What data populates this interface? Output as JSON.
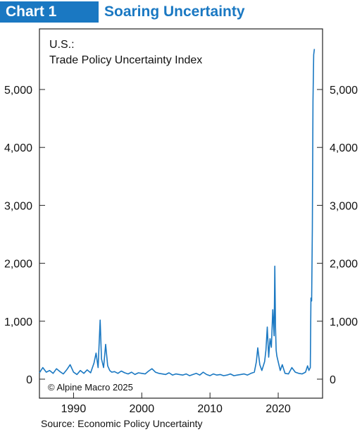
{
  "header": {
    "chart_number": "Chart 1",
    "title": "Soaring Uncertainty"
  },
  "footer": {
    "source": "Source: Economic Policy Uncertainty"
  },
  "colors": {
    "accent": "#1a78c2",
    "line": "#1a78c2"
  },
  "chart_data": {
    "type": "line",
    "title": "U.S.:",
    "subtitle": "Trade Policy Uncertainty Index",
    "annotation": "© Alpine Macro 2025",
    "xlabel": "",
    "ylabel": "",
    "xlim": [
      1985,
      2026.5
    ],
    "ylim": [
      0,
      6000
    ],
    "y_ticks": [
      0,
      1000,
      2000,
      3000,
      4000,
      5000
    ],
    "y_tick_labels": [
      "0",
      "1,000",
      "2,000",
      "3,000",
      "4,000",
      "5,000"
    ],
    "x_ticks": [
      1990,
      2000,
      2010,
      2020
    ],
    "x_tick_labels": [
      "1990",
      "2000",
      "2010",
      "2020"
    ],
    "grid": false,
    "series": [
      {
        "name": "",
        "x": [
          1985.0,
          1985.5,
          1986.0,
          1986.5,
          1987.0,
          1987.5,
          1988.0,
          1988.5,
          1989.0,
          1989.5,
          1990.0,
          1990.5,
          1991.0,
          1991.5,
          1992.0,
          1992.5,
          1993.0,
          1993.3,
          1993.6,
          1993.9,
          1994.1,
          1994.4,
          1994.7,
          1995.0,
          1995.3,
          1995.6,
          1996.0,
          1996.5,
          1997.0,
          1997.5,
          1998.0,
          1998.5,
          1999.0,
          1999.5,
          2000.0,
          2000.5,
          2001.0,
          2001.5,
          2002.0,
          2002.5,
          2003.0,
          2003.5,
          2004.0,
          2004.5,
          2005.0,
          2005.5,
          2006.0,
          2006.5,
          2007.0,
          2007.5,
          2008.0,
          2008.5,
          2009.0,
          2009.5,
          2010.0,
          2010.5,
          2011.0,
          2011.5,
          2012.0,
          2012.5,
          2013.0,
          2013.5,
          2014.0,
          2014.5,
          2015.0,
          2015.5,
          2016.0,
          2016.5,
          2016.8,
          2017.0,
          2017.3,
          2017.6,
          2018.0,
          2018.2,
          2018.4,
          2018.6,
          2018.8,
          2019.0,
          2019.2,
          2019.4,
          2019.5,
          2019.6,
          2019.7,
          2019.8,
          2020.0,
          2020.3,
          2020.6,
          2021.0,
          2021.5,
          2022.0,
          2022.5,
          2023.0,
          2023.5,
          2024.0,
          2024.3,
          2024.5,
          2024.7,
          2024.8,
          2024.9,
          2025.0,
          2025.1,
          2025.2,
          2025.3
        ],
        "y": [
          110,
          200,
          120,
          150,
          100,
          180,
          130,
          90,
          160,
          250,
          120,
          80,
          150,
          100,
          160,
          110,
          280,
          450,
          200,
          1020,
          350,
          200,
          600,
          230,
          150,
          120,
          130,
          100,
          140,
          110,
          90,
          120,
          80,
          110,
          100,
          90,
          140,
          180,
          120,
          100,
          90,
          80,
          110,
          70,
          90,
          80,
          70,
          90,
          60,
          80,
          100,
          70,
          120,
          80,
          60,
          90,
          70,
          80,
          60,
          70,
          90,
          60,
          70,
          80,
          90,
          70,
          100,
          120,
          300,
          540,
          250,
          150,
          300,
          500,
          900,
          380,
          700,
          550,
          1200,
          750,
          1950,
          900,
          500,
          400,
          300,
          150,
          250,
          100,
          90,
          200,
          120,
          100,
          90,
          120,
          230,
          150,
          200,
          1400,
          1350,
          2600,
          4800,
          5600,
          5700
        ]
      }
    ]
  }
}
